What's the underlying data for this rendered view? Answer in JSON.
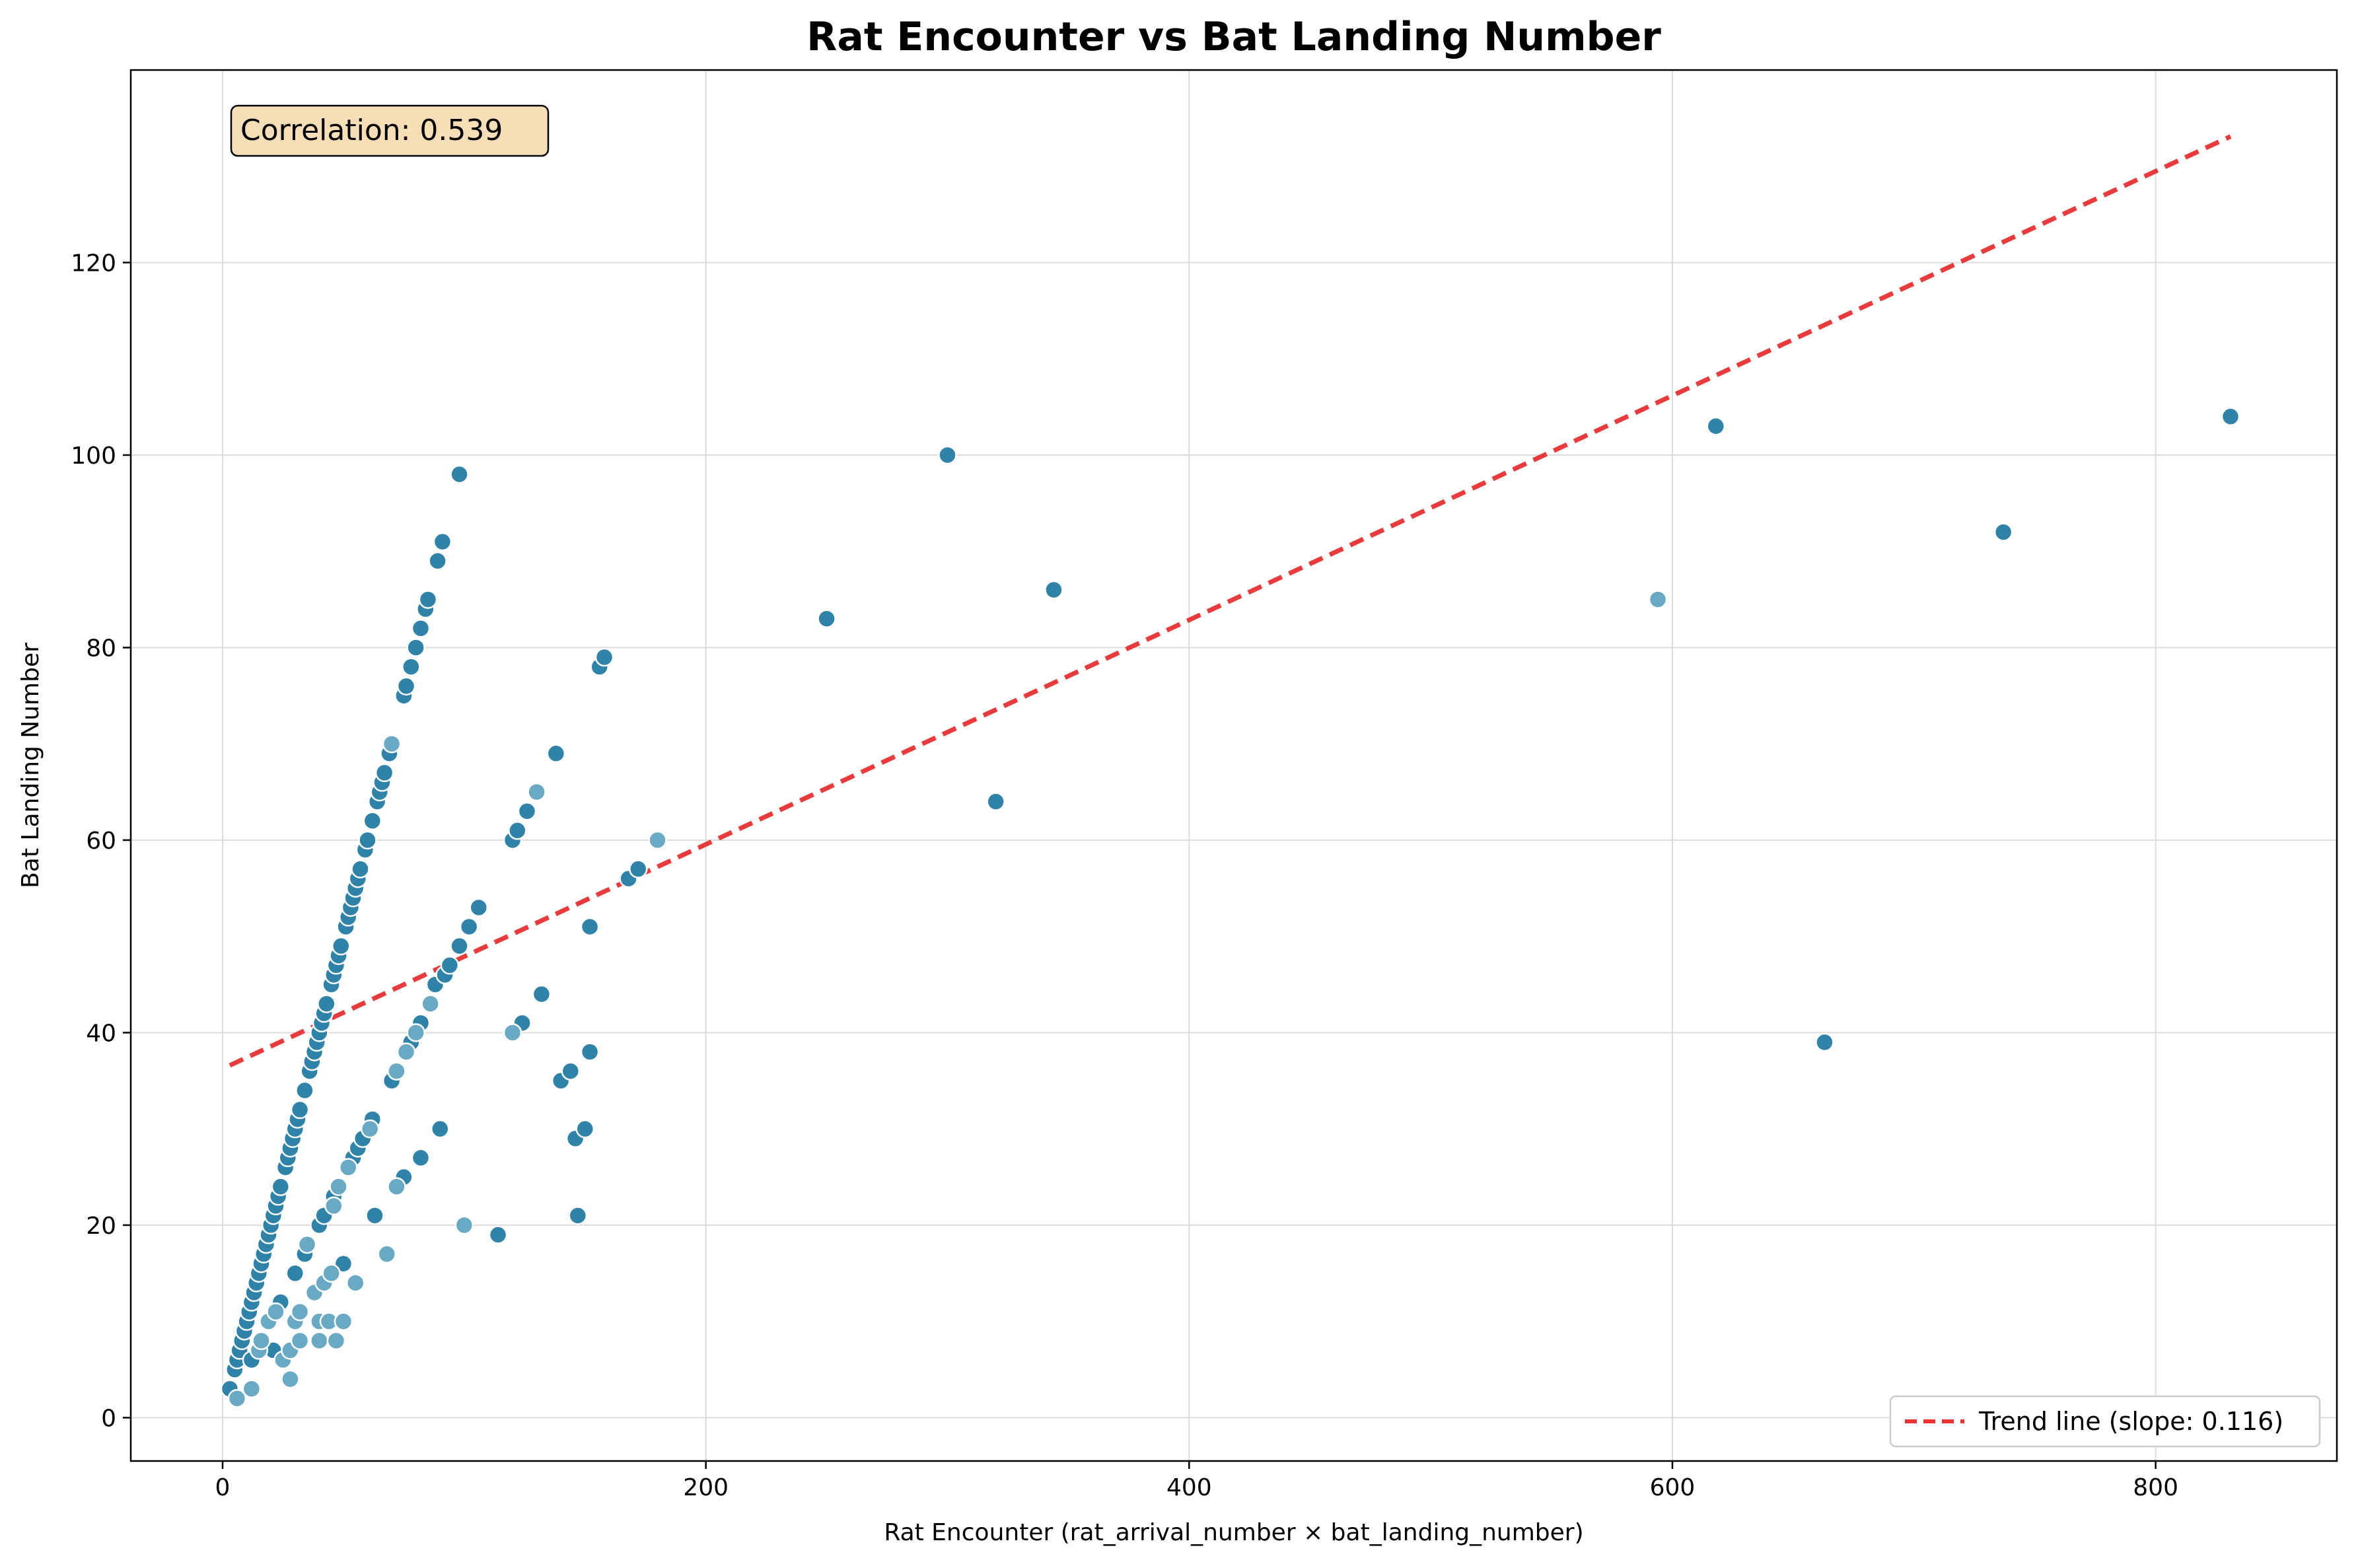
{
  "chart_data": {
    "type": "scatter",
    "title": "Rat Encounter vs Bat Landing Number",
    "xlabel": "Rat Encounter (rat_arrival_number × bat_landing_number)",
    "ylabel": "Bat Landing Number",
    "xlim": [
      -38,
      875
    ],
    "ylim": [
      -4.5,
      140
    ],
    "xticks": [
      0,
      200,
      400,
      600,
      800
    ],
    "yticks": [
      0,
      20,
      40,
      60,
      80,
      100,
      120
    ],
    "grid": true,
    "legend_position": "lower-right",
    "annotation": "Correlation: 0.539",
    "trend": {
      "label": "Trend line (slope: 0.116)",
      "x": [
        3,
        831
      ],
      "y": [
        36.6,
        133.1
      ],
      "color": "#e83030",
      "style": "dashed"
    },
    "colors": {
      "dark": "#2f83a8",
      "light": "#6aa9c4",
      "edge": "#ffffff"
    },
    "series": [
      {
        "color": "dark",
        "points": [
          [
            3,
            3
          ],
          [
            5,
            5
          ],
          [
            6,
            6
          ],
          [
            7,
            7
          ],
          [
            8,
            8
          ],
          [
            9,
            9
          ],
          [
            10,
            10
          ],
          [
            11,
            11
          ],
          [
            12,
            12
          ],
          [
            13,
            13
          ],
          [
            14,
            14
          ],
          [
            15,
            15
          ],
          [
            16,
            16
          ],
          [
            17,
            17
          ],
          [
            18,
            18
          ],
          [
            19,
            19
          ],
          [
            20,
            20
          ],
          [
            21,
            21
          ],
          [
            22,
            22
          ],
          [
            23,
            23
          ],
          [
            24,
            24
          ],
          [
            26,
            26
          ],
          [
            27,
            27
          ],
          [
            28,
            28
          ],
          [
            29,
            29
          ],
          [
            30,
            30
          ],
          [
            31,
            31
          ],
          [
            32,
            32
          ],
          [
            34,
            34
          ],
          [
            36,
            36
          ],
          [
            37,
            37
          ],
          [
            38,
            38
          ],
          [
            39,
            39
          ],
          [
            40,
            40
          ],
          [
            41,
            41
          ],
          [
            42,
            42
          ],
          [
            43,
            43
          ],
          [
            45,
            45
          ],
          [
            46,
            46
          ],
          [
            47,
            47
          ],
          [
            48,
            48
          ],
          [
            49,
            49
          ],
          [
            51,
            51
          ],
          [
            52,
            52
          ],
          [
            53,
            53
          ],
          [
            54,
            54
          ],
          [
            55,
            55
          ],
          [
            56,
            56
          ],
          [
            57,
            57
          ],
          [
            59,
            59
          ],
          [
            60,
            60
          ],
          [
            62,
            62
          ],
          [
            64,
            64
          ],
          [
            65,
            65
          ],
          [
            66,
            66
          ],
          [
            67,
            67
          ],
          [
            69,
            69
          ],
          [
            75,
            75
          ],
          [
            76,
            76
          ],
          [
            78,
            78
          ],
          [
            80,
            80
          ],
          [
            82,
            82
          ],
          [
            84,
            84
          ],
          [
            85,
            85
          ],
          [
            89,
            89
          ],
          [
            91,
            91
          ],
          [
            98,
            98
          ],
          [
            12,
            6
          ],
          [
            21,
            7
          ],
          [
            24,
            12
          ],
          [
            30,
            15
          ],
          [
            34,
            17
          ],
          [
            40,
            20
          ],
          [
            42,
            21
          ],
          [
            46,
            23
          ],
          [
            50,
            16
          ],
          [
            54,
            27
          ],
          [
            56,
            28
          ],
          [
            58,
            29
          ],
          [
            62,
            31
          ],
          [
            63,
            21
          ],
          [
            70,
            35
          ],
          [
            75,
            25
          ],
          [
            78,
            39
          ],
          [
            82,
            27
          ],
          [
            82,
            41
          ],
          [
            88,
            45
          ],
          [
            90,
            30
          ],
          [
            92,
            46
          ],
          [
            94,
            47
          ],
          [
            98,
            49
          ],
          [
            100,
            20
          ],
          [
            102,
            51
          ],
          [
            106,
            53
          ],
          [
            114,
            19
          ],
          [
            120,
            60
          ],
          [
            122,
            61
          ],
          [
            124,
            41
          ],
          [
            126,
            63
          ],
          [
            132,
            44
          ],
          [
            138,
            69
          ],
          [
            140,
            35
          ],
          [
            144,
            36
          ],
          [
            146,
            29
          ],
          [
            147,
            21
          ],
          [
            150,
            30
          ],
          [
            152,
            51
          ],
          [
            152,
            38
          ],
          [
            156,
            78
          ],
          [
            158,
            79
          ],
          [
            168,
            56
          ],
          [
            172,
            57
          ],
          [
            250,
            83
          ],
          [
            300,
            100
          ],
          [
            320,
            64
          ],
          [
            344,
            86
          ],
          [
            618,
            103
          ],
          [
            663,
            39
          ],
          [
            737,
            92
          ],
          [
            831,
            104
          ]
        ]
      },
      {
        "color": "light",
        "points": [
          [
            6,
            2
          ],
          [
            12,
            3
          ],
          [
            15,
            7
          ],
          [
            16,
            8
          ],
          [
            19,
            10
          ],
          [
            22,
            11
          ],
          [
            25,
            6
          ],
          [
            28,
            4
          ],
          [
            28,
            7
          ],
          [
            30,
            10
          ],
          [
            32,
            8
          ],
          [
            32,
            11
          ],
          [
            35,
            18
          ],
          [
            38,
            13
          ],
          [
            40,
            8
          ],
          [
            40,
            10
          ],
          [
            42,
            14
          ],
          [
            44,
            10
          ],
          [
            45,
            15
          ],
          [
            46,
            22
          ],
          [
            47,
            8
          ],
          [
            48,
            24
          ],
          [
            50,
            10
          ],
          [
            52,
            26
          ],
          [
            55,
            14
          ],
          [
            61,
            30
          ],
          [
            68,
            17
          ],
          [
            70,
            70
          ],
          [
            72,
            24
          ],
          [
            72,
            36
          ],
          [
            76,
            38
          ],
          [
            80,
            40
          ],
          [
            86,
            43
          ],
          [
            100,
            20
          ],
          [
            120,
            40
          ],
          [
            130,
            65
          ],
          [
            180,
            60
          ],
          [
            594,
            85
          ]
        ]
      }
    ]
  }
}
